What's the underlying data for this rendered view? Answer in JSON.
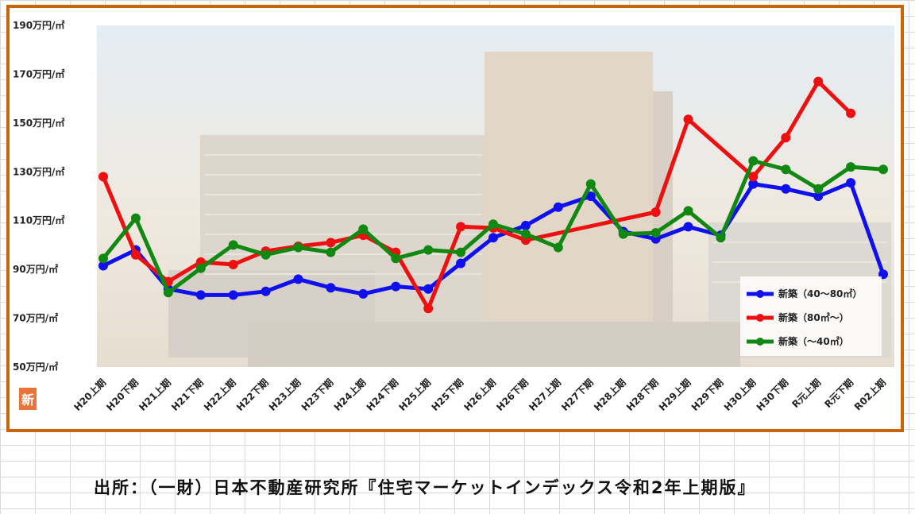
{
  "chart_data": {
    "type": "line",
    "title": "",
    "xlabel": "",
    "ylabel": "",
    "ylim": [
      50,
      190
    ],
    "y_ticks": [
      50,
      70,
      90,
      110,
      130,
      150,
      170,
      190
    ],
    "y_tick_suffix": "万円/㎡",
    "grid": false,
    "legend_position": "bottom-right",
    "categories": [
      "H20上期",
      "H20下期",
      "H21上期",
      "H21下期",
      "H22上期",
      "H22下期",
      "H23上期",
      "H23下期",
      "H24上期",
      "H24下期",
      "H25上期",
      "H25下期",
      "H26上期",
      "H26下期",
      "H27上期",
      "H27下期",
      "H28上期",
      "H28下期",
      "H29上期",
      "H29下期",
      "H30上期",
      "H30下期",
      "R元上期",
      "R元下期",
      "R02上期"
    ],
    "series": [
      {
        "name": "新築（40～80㎡）",
        "color": "#1010ee",
        "values": [
          91.5,
          98,
          82,
          79.5,
          79.5,
          81,
          86,
          82.5,
          80,
          83,
          82,
          92.5,
          103,
          108,
          115.5,
          120,
          105.5,
          102.5,
          107.5,
          104,
          125,
          123,
          120,
          125.5,
          88
        ]
      },
      {
        "name": "新築（80㎡～）",
        "color": "#ee1010",
        "values": [
          128,
          96,
          85,
          93,
          92,
          97.5,
          99.5,
          101,
          104,
          97,
          74,
          107.5,
          107,
          102,
          null,
          null,
          null,
          113.5,
          151.5,
          null,
          128,
          144,
          167,
          154,
          null
        ]
      },
      {
        "name": "新築（～40㎡）",
        "color": "#118811",
        "values": [
          94.5,
          111,
          80.5,
          90.5,
          100,
          96,
          99,
          97,
          106.5,
          94.5,
          98,
          97,
          108.5,
          104.5,
          99,
          125,
          104.5,
          105,
          114,
          103,
          134.5,
          131,
          123,
          132,
          131
        ]
      }
    ]
  },
  "badge_char": "新",
  "source_text": "出所：（一財）日本不動産研究所『住宅マーケットインデックス令和2年上期版』"
}
